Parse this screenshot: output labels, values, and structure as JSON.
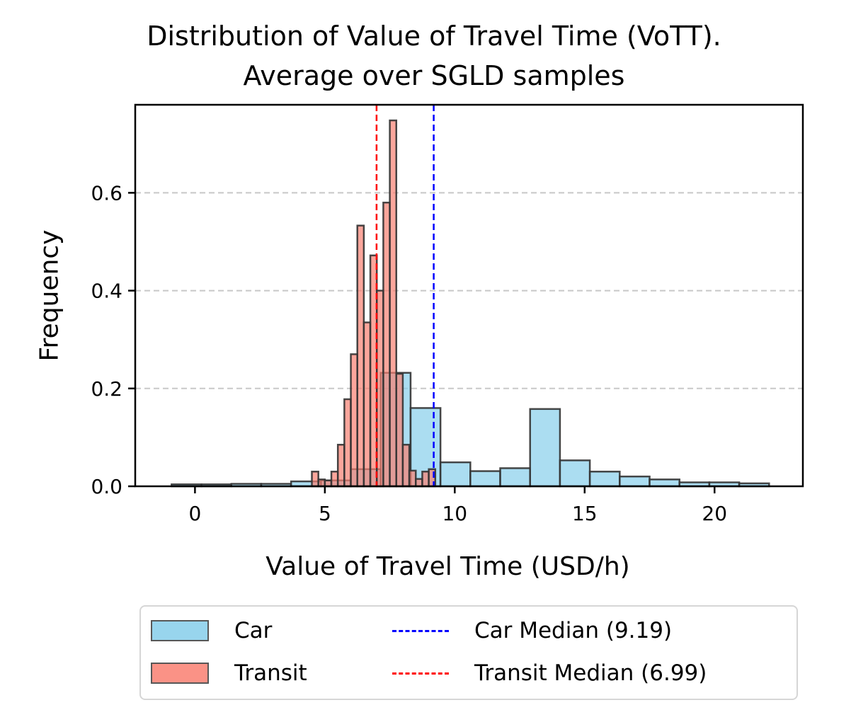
{
  "chart_data": {
    "type": "bar",
    "title_lines": [
      "Distribution of Value of Travel Time (VoTT).",
      "Average over SGLD samples"
    ],
    "xlabel": "Value of Travel Time (USD/h)",
    "ylabel": "Frequency",
    "xlim": [
      -2.3,
      23.4
    ],
    "ylim": [
      0,
      0.78
    ],
    "x_ticks": [
      0,
      5,
      10,
      15,
      20
    ],
    "y_ticks": [
      0.0,
      0.2,
      0.4,
      0.6
    ],
    "y_tick_labels": [
      "0.0",
      "0.2",
      "0.4",
      "0.6"
    ],
    "grid": "y",
    "legend_position": "below",
    "colors": {
      "car_fill": "#87ceeb",
      "transit_fill": "#fa8072",
      "edge": "#333333",
      "car_median": "#0000ff",
      "transit_median": "#ff0000",
      "grid": "#c8c8c8"
    },
    "series": [
      {
        "name": "Car",
        "bin_edges": [
          -0.9,
          0.25,
          1.4,
          2.55,
          3.7,
          4.85,
          6.0,
          7.15,
          8.3,
          9.45,
          10.6,
          11.75,
          12.9,
          14.05,
          15.2,
          16.35,
          17.5,
          18.65,
          19.8,
          20.95,
          22.1
        ],
        "values": [
          0.004,
          0.004,
          0.005,
          0.005,
          0.01,
          0.012,
          0.035,
          0.232,
          0.16,
          0.049,
          0.031,
          0.037,
          0.158,
          0.053,
          0.03,
          0.02,
          0.014,
          0.008,
          0.008,
          0.006
        ]
      },
      {
        "name": "Transit",
        "bin_edges": [
          4.5,
          4.75,
          5.0,
          5.25,
          5.5,
          5.75,
          6.0,
          6.25,
          6.5,
          6.75,
          7.0,
          7.25,
          7.5,
          7.75,
          8.0,
          8.25,
          8.5,
          8.75,
          9.0,
          9.25
        ],
        "values": [
          0.03,
          0.014,
          0.012,
          0.03,
          0.085,
          0.178,
          0.27,
          0.533,
          0.335,
          0.472,
          0.4,
          0.58,
          0.748,
          0.23,
          0.085,
          0.032,
          0.015,
          0.03,
          0.035
        ]
      }
    ],
    "medians": [
      {
        "name": "Car Median (9.19)",
        "value": 9.19
      },
      {
        "name": "Transit Median (6.99)",
        "value": 6.99
      }
    ]
  }
}
